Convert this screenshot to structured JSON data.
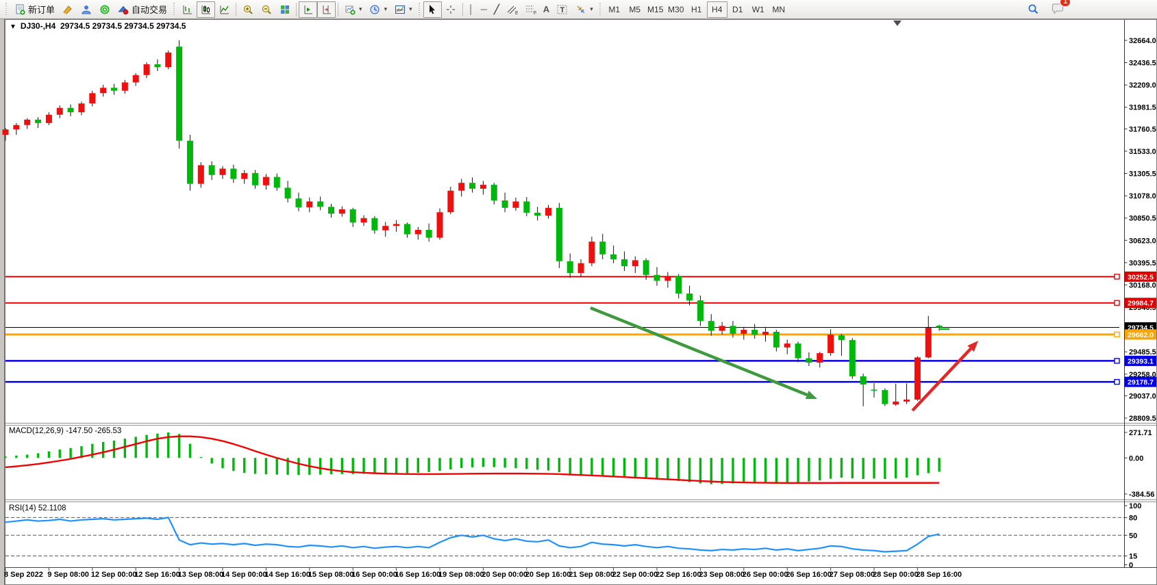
{
  "toolbar": {
    "new_order": "新订单",
    "auto_trading": "自动交易",
    "timeframes": [
      "M1",
      "M5",
      "M15",
      "M30",
      "H1",
      "H4",
      "D1",
      "W1",
      "MN"
    ],
    "active_timeframe": "H4",
    "notification_badge": "1",
    "glyphs": {
      "caret": "▾",
      "crosshair": "✛",
      "vertical_line": "│",
      "horizontal_line": "─",
      "trend_line": "╱",
      "text": "A",
      "text_label": "T",
      "channel_sub": "E",
      "fibo_sub": "F"
    }
  },
  "chart": {
    "one_click_arrow": "▼",
    "symbol_period": "DJ30-,H4",
    "ohlc": "29734.5 29734.5 29734.5 29734.5",
    "macd_label": "MACD(12,26,9) -147.50 -265.53",
    "rsi_label": "RSI(14) 52.1108"
  },
  "chart_data": [
    {
      "type": "candlestick",
      "symbol": "DJ30-",
      "period": "H4",
      "ylim": [
        28809.5,
        32664.0
      ],
      "up_color": "#ee0f0f",
      "down_color": "#00b70c",
      "wick_color": "#111111",
      "y_ticks": [
        "32664.0",
        "32436.5",
        "32209.0",
        "31981.5",
        "31760.5",
        "31533.0",
        "31305.5",
        "31078.0",
        "30850.5",
        "30623.0",
        "30395.5",
        "30168.0",
        "29940.5",
        "29485.5",
        "29258.0",
        "29037.0",
        "28809.5"
      ],
      "x_ticks": [
        {
          "i": 0,
          "label": "8 Sep 2022"
        },
        {
          "i": 4,
          "label": "9 Sep 08:00"
        },
        {
          "i": 8,
          "label": "12 Sep 00:00"
        },
        {
          "i": 12,
          "label": "12 Sep 16:00"
        },
        {
          "i": 16,
          "label": "13 Sep 08:00"
        },
        {
          "i": 20,
          "label": "14 Sep 00:00"
        },
        {
          "i": 24,
          "label": "14 Sep 16:00"
        },
        {
          "i": 28,
          "label": "15 Sep 08:00"
        },
        {
          "i": 32,
          "label": "16 Sep 00:00"
        },
        {
          "i": 36,
          "label": "16 Sep 16:00"
        },
        {
          "i": 40,
          "label": "19 Sep 08:00"
        },
        {
          "i": 44,
          "label": "20 Sep 00:00"
        },
        {
          "i": 48,
          "label": "20 Sep 16:00"
        },
        {
          "i": 52,
          "label": "21 Sep 08:00"
        },
        {
          "i": 56,
          "label": "22 Sep 00:00"
        },
        {
          "i": 60,
          "label": "22 Sep 16:00"
        },
        {
          "i": 64,
          "label": "23 Sep 08:00"
        },
        {
          "i": 68,
          "label": "26 Sep 00:00"
        },
        {
          "i": 72,
          "label": "26 Sep 16:00"
        },
        {
          "i": 76,
          "label": "27 Sep 08:00"
        },
        {
          "i": 80,
          "label": "28 Sep 00:00"
        },
        {
          "i": 84,
          "label": "28 Sep 16:00"
        }
      ],
      "hlines": [
        {
          "price": 30252.5,
          "label": "30252.5",
          "color": "#e00000",
          "width": 2
        },
        {
          "price": 29984.7,
          "label": "29984.7",
          "color": "#e00000",
          "width": 2
        },
        {
          "price": 29734.5,
          "label": "29734.5",
          "color": "#000000",
          "width": 1,
          "is_current_price": true
        },
        {
          "price": 29662.0,
          "label": "29662.0",
          "color": "#ffa500",
          "width": 3
        },
        {
          "price": 29393.1,
          "label": "29393.1",
          "color": "#0000e0",
          "width": 2.5
        },
        {
          "price": 29178.7,
          "label": "29178.7",
          "color": "#0000e0",
          "width": 2.5
        }
      ],
      "candles": [
        [
          31700,
          31770,
          31640,
          31755
        ],
        [
          31755,
          31820,
          31700,
          31800
        ],
        [
          31800,
          31870,
          31760,
          31855
        ],
        [
          31855,
          31880,
          31770,
          31820
        ],
        [
          31820,
          31930,
          31800,
          31905
        ],
        [
          31905,
          32000,
          31870,
          31975
        ],
        [
          31975,
          32010,
          31890,
          31930
        ],
        [
          31930,
          32040,
          31900,
          32020
        ],
        [
          32020,
          32150,
          31990,
          32125
        ],
        [
          32125,
          32210,
          32090,
          32180
        ],
        [
          32180,
          32220,
          32110,
          32150
        ],
        [
          32150,
          32260,
          32120,
          32235
        ],
        [
          32235,
          32330,
          32200,
          32310
        ],
        [
          32310,
          32440,
          32280,
          32420
        ],
        [
          32420,
          32470,
          32350,
          32390
        ],
        [
          32390,
          32560,
          32370,
          32540
        ],
        [
          32600,
          32664,
          31560,
          31640
        ],
        [
          31640,
          31700,
          31130,
          31200
        ],
        [
          31200,
          31420,
          31160,
          31390
        ],
        [
          31390,
          31430,
          31240,
          31290
        ],
        [
          31290,
          31380,
          31250,
          31355
        ],
        [
          31355,
          31395,
          31210,
          31250
        ],
        [
          31250,
          31340,
          31200,
          31310
        ],
        [
          31310,
          31340,
          31150,
          31185
        ],
        [
          31185,
          31300,
          31140,
          31270
        ],
        [
          31270,
          31305,
          31130,
          31160
        ],
        [
          31160,
          31230,
          31010,
          31050
        ],
        [
          31050,
          31110,
          30920,
          30960
        ],
        [
          30960,
          31060,
          30910,
          31020
        ],
        [
          31020,
          31070,
          30930,
          30965
        ],
        [
          30965,
          30995,
          30855,
          30895
        ],
        [
          30895,
          30970,
          30865,
          30940
        ],
        [
          30940,
          30955,
          30760,
          30805
        ],
        [
          30805,
          30880,
          30770,
          30850
        ],
        [
          30850,
          30870,
          30690,
          30725
        ],
        [
          30725,
          30810,
          30660,
          30770
        ],
        [
          30770,
          30830,
          30710,
          30790
        ],
        [
          30790,
          30805,
          30650,
          30685
        ],
        [
          30685,
          30760,
          30630,
          30730
        ],
        [
          30730,
          30795,
          30610,
          30650
        ],
        [
          30650,
          30950,
          30630,
          30910
        ],
        [
          30910,
          31170,
          30890,
          31130
        ],
        [
          31130,
          31250,
          31070,
          31210
        ],
        [
          31210,
          31265,
          31110,
          31150
        ],
        [
          31150,
          31230,
          31090,
          31190
        ],
        [
          31190,
          31210,
          30990,
          31030
        ],
        [
          31030,
          31110,
          30910,
          30955
        ],
        [
          30955,
          31060,
          30925,
          31020
        ],
        [
          31020,
          31065,
          30870,
          30905
        ],
        [
          30905,
          30965,
          30825,
          30875
        ],
        [
          30875,
          30985,
          30845,
          30955
        ],
        [
          30955,
          31005,
          30340,
          30410
        ],
        [
          30410,
          30490,
          30240,
          30290
        ],
        [
          30290,
          30430,
          30250,
          30390
        ],
        [
          30390,
          30660,
          30360,
          30610
        ],
        [
          30610,
          30690,
          30430,
          30480
        ],
        [
          30480,
          30570,
          30390,
          30430
        ],
        [
          30430,
          30510,
          30310,
          30360
        ],
        [
          30360,
          30460,
          30290,
          30420
        ],
        [
          30420,
          30440,
          30220,
          30270
        ],
        [
          30270,
          30350,
          30160,
          30210
        ],
        [
          30210,
          30300,
          30140,
          30260
        ],
        [
          30260,
          30280,
          30030,
          30080
        ],
        [
          30080,
          30160,
          29960,
          30010
        ],
        [
          30010,
          30060,
          29750,
          29800
        ],
        [
          29800,
          29870,
          29650,
          29700
        ],
        [
          29700,
          29790,
          29660,
          29750
        ],
        [
          29750,
          29800,
          29630,
          29670
        ],
        [
          29670,
          29740,
          29610,
          29710
        ],
        [
          29710,
          29770,
          29620,
          29660
        ],
        [
          29660,
          29730,
          29590,
          29690
        ],
        [
          29690,
          29710,
          29490,
          29530
        ],
        [
          29530,
          29610,
          29460,
          29570
        ],
        [
          29570,
          29590,
          29380,
          29420
        ],
        [
          29420,
          29480,
          29340,
          29375
        ],
        [
          29375,
          29485,
          29325,
          29472
        ],
        [
          29472,
          29715,
          29445,
          29660
        ],
        [
          29653,
          29668,
          29445,
          29606
        ],
        [
          29606,
          29625,
          29210,
          29235
        ],
        [
          29235,
          29262,
          28930,
          29152
        ],
        [
          29100,
          29165,
          29020,
          29095
        ],
        [
          29095,
          29112,
          28932,
          28952
        ],
        [
          28948,
          29160,
          28935,
          28978
        ],
        [
          28978,
          29162,
          28952,
          28998
        ],
        [
          28998,
          29440,
          28985,
          29428
        ],
        [
          29428,
          29852,
          29420,
          29731
        ],
        [
          29752,
          29762,
          29700,
          29734.5
        ]
      ],
      "annotations": [
        {
          "type": "arrow",
          "name": "down-trend-arrow",
          "color": "#3f9a3f",
          "from": [
            862,
            450
          ],
          "to": [
            1193,
            583
          ]
        },
        {
          "type": "arrow",
          "name": "up-trend-arrow",
          "color": "#e02828",
          "from": [
            1332,
            600
          ],
          "to": [
            1428,
            498
          ]
        },
        {
          "type": "dash",
          "name": "last-price-dash",
          "color": "#00b70c",
          "from": [
            1371,
            481
          ],
          "to": [
            1386,
            481
          ]
        }
      ]
    },
    {
      "type": "bar",
      "name": "MACD(12,26,9)",
      "values_label": "-147.50 -265.53",
      "ylim": [
        -384.56,
        271.71
      ],
      "y_ticks": [
        "271.71",
        "0.00",
        "-384.56"
      ],
      "histogram_color": "#00b70c",
      "signal_color": "#f00000",
      "histogram": [
        15,
        25,
        35,
        50,
        70,
        90,
        105,
        125,
        150,
        170,
        185,
        205,
        225,
        245,
        260,
        272,
        255,
        150,
        10,
        -60,
        -110,
        -140,
        -160,
        -170,
        -175,
        -178,
        -180,
        -182,
        -180,
        -178,
        -175,
        -172,
        -172,
        -170,
        -168,
        -166,
        -164,
        -162,
        -158,
        -150,
        -138,
        -122,
        -108,
        -100,
        -96,
        -98,
        -104,
        -110,
        -118,
        -126,
        -134,
        -152,
        -170,
        -182,
        -186,
        -192,
        -200,
        -210,
        -214,
        -222,
        -230,
        -232,
        -245,
        -258,
        -272,
        -280,
        -278,
        -272,
        -268,
        -265,
        -260,
        -262,
        -258,
        -262,
        -252,
        -240,
        -222,
        -210,
        -218,
        -224,
        -220,
        -224,
        -218,
        -210,
        -185,
        -162,
        -147.5
      ],
      "signal": [
        -100,
        -90,
        -78,
        -64,
        -48,
        -30,
        -10,
        12,
        35,
        60,
        88,
        118,
        148,
        178,
        205,
        222,
        230,
        230,
        222,
        205,
        180,
        148,
        112,
        72,
        35,
        0,
        -32,
        -62,
        -88,
        -110,
        -128,
        -142,
        -152,
        -158,
        -163,
        -167,
        -170,
        -172,
        -173,
        -173,
        -172,
        -171,
        -170,
        -168,
        -167,
        -166,
        -166,
        -166,
        -167,
        -168,
        -170,
        -173,
        -177,
        -182,
        -187,
        -192,
        -198,
        -204,
        -210,
        -216,
        -222,
        -228,
        -234,
        -240,
        -246,
        -251,
        -256,
        -259,
        -262,
        -264,
        -265,
        -266,
        -267,
        -267,
        -267,
        -267,
        -267,
        -266,
        -266,
        -266,
        -266,
        -266,
        -266,
        -266,
        -266,
        -266,
        -265.53
      ]
    },
    {
      "type": "line",
      "name": "RSI(14)",
      "value_label": "52.1108",
      "ylim": [
        0,
        100
      ],
      "y_ticks": [
        "100",
        "80",
        "50",
        "15",
        "0"
      ],
      "levels": [
        80,
        50,
        15
      ],
      "color": "#1e90ff",
      "values": [
        72,
        74,
        76,
        74,
        75,
        77,
        74,
        76,
        77,
        78,
        76,
        77,
        78,
        79,
        77,
        80,
        42,
        34,
        37,
        35,
        36,
        34,
        36,
        33,
        35,
        34,
        31,
        30,
        33,
        32,
        30,
        32,
        29,
        31,
        28,
        30,
        31,
        29,
        31,
        29,
        38,
        46,
        50,
        47,
        50,
        44,
        41,
        44,
        40,
        39,
        42,
        32,
        29,
        31,
        38,
        35,
        34,
        32,
        34,
        31,
        29,
        31,
        28,
        27,
        25,
        24,
        26,
        25,
        27,
        26,
        28,
        25,
        27,
        24,
        26,
        28,
        32,
        31,
        27,
        25,
        24,
        22,
        23,
        24,
        35,
        48,
        52.11
      ]
    }
  ]
}
